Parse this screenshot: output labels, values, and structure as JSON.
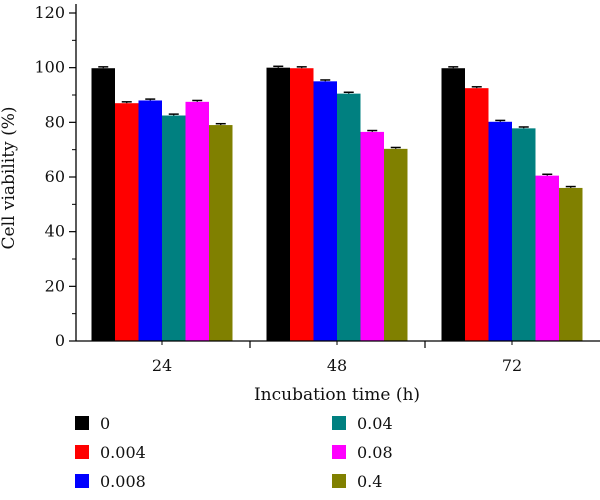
{
  "chart_data": {
    "type": "bar",
    "title": "",
    "xlabel": "Incubation time (h)",
    "ylabel": "Cell viability (%)",
    "ylim": [
      0,
      120
    ],
    "yticks": [
      0,
      20,
      40,
      60,
      80,
      100,
      120
    ],
    "categories": [
      "24",
      "48",
      "72"
    ],
    "grid": false,
    "legend_position": "bottom",
    "series": [
      {
        "name": "0",
        "color": "#000000",
        "values": [
          99.8,
          100.0,
          99.8
        ],
        "errors": [
          0.5,
          0.5,
          0.5
        ]
      },
      {
        "name": "0.004",
        "color": "#ff0000",
        "values": [
          87.0,
          99.8,
          92.5
        ],
        "errors": [
          0.5,
          0.5,
          0.5
        ]
      },
      {
        "name": "0.008",
        "color": "#0000ff",
        "values": [
          88.0,
          95.0,
          80.2
        ],
        "errors": [
          0.5,
          0.5,
          0.5
        ]
      },
      {
        "name": "0.04",
        "color": "#008080",
        "values": [
          82.5,
          90.5,
          77.8
        ],
        "errors": [
          0.5,
          0.5,
          0.5
        ]
      },
      {
        "name": "0.08",
        "color": "#ff00ff",
        "values": [
          87.5,
          76.5,
          60.5
        ],
        "errors": [
          0.5,
          0.5,
          0.5
        ]
      },
      {
        "name": "0.4",
        "color": "#808000",
        "values": [
          79.0,
          70.3,
          56.0
        ],
        "errors": [
          0.5,
          0.5,
          0.5
        ]
      }
    ]
  }
}
